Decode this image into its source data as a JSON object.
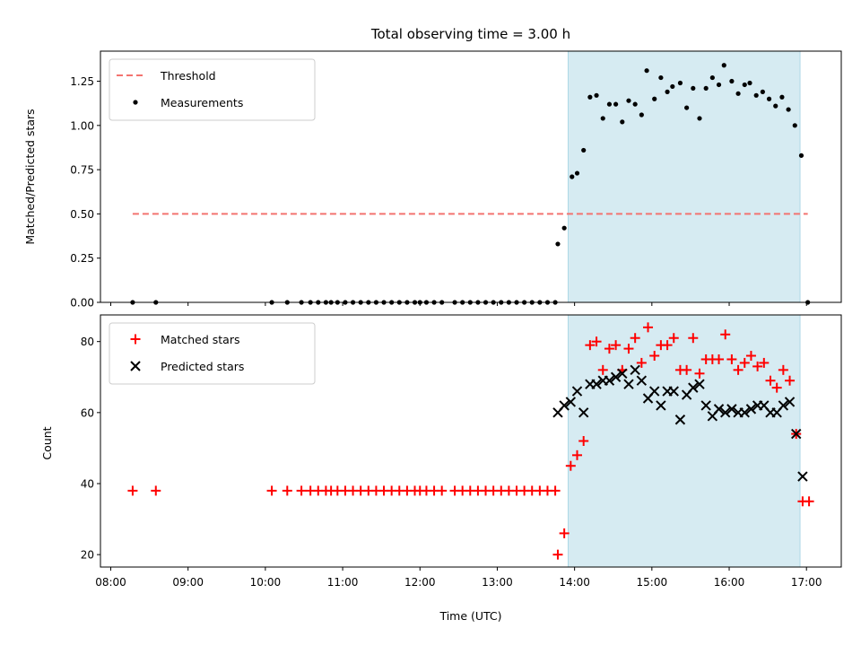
{
  "chart_data": {
    "title": "Total observing time = 3.00 h",
    "xlabel": "Time (UTC)",
    "x_ticks": [
      "08:00",
      "09:00",
      "10:00",
      "11:00",
      "12:00",
      "13:00",
      "14:00",
      "15:00",
      "16:00",
      "17:00"
    ],
    "xlim": [
      "07:52",
      "17:27"
    ],
    "shaded_span": {
      "start": "13:55",
      "end": "16:55",
      "color": "#add8e6"
    },
    "panels": [
      {
        "type": "scatter",
        "ylabel": "Matched/Predicted stars",
        "ylim": [
          0,
          1.42
        ],
        "y_ticks": [
          "0.00",
          "0.25",
          "0.50",
          "0.75",
          "1.00",
          "1.25"
        ],
        "legend": {
          "placement": "top-left",
          "entries": [
            "Threshold",
            "Measurements"
          ]
        },
        "threshold": {
          "name": "Threshold",
          "value": 0.5,
          "x_range": [
            "08:17",
            "17:01"
          ],
          "color": "#f37370",
          "style": "dashed"
        },
        "series": [
          {
            "name": "Measurements",
            "marker": "dot",
            "color": "#000000",
            "points": [
              [
                "08:17",
                0
              ],
              [
                "08:35",
                0
              ],
              [
                "10:05",
                0
              ],
              [
                "10:17",
                0
              ],
              [
                "10:28",
                0
              ],
              [
                "10:35",
                0
              ],
              [
                "10:41",
                0
              ],
              [
                "10:47",
                0
              ],
              [
                "10:51",
                0
              ],
              [
                "10:56",
                0
              ],
              [
                "11:02",
                0
              ],
              [
                "11:08",
                0
              ],
              [
                "11:14",
                0
              ],
              [
                "11:20",
                0
              ],
              [
                "11:26",
                0
              ],
              [
                "11:32",
                0
              ],
              [
                "11:38",
                0
              ],
              [
                "11:44",
                0
              ],
              [
                "11:50",
                0
              ],
              [
                "11:56",
                0
              ],
              [
                "12:00",
                0
              ],
              [
                "12:05",
                0
              ],
              [
                "12:11",
                0
              ],
              [
                "12:17",
                0
              ],
              [
                "12:27",
                0
              ],
              [
                "12:33",
                0
              ],
              [
                "12:39",
                0
              ],
              [
                "12:45",
                0
              ],
              [
                "12:51",
                0
              ],
              [
                "12:57",
                0
              ],
              [
                "13:03",
                0
              ],
              [
                "13:09",
                0
              ],
              [
                "13:15",
                0
              ],
              [
                "13:21",
                0
              ],
              [
                "13:27",
                0
              ],
              [
                "13:33",
                0
              ],
              [
                "13:39",
                0
              ],
              [
                "13:45",
                0
              ],
              [
                "13:47",
                0.33
              ],
              [
                "13:52",
                0.42
              ],
              [
                "13:58",
                0.71
              ],
              [
                "14:02",
                0.73
              ],
              [
                "14:07",
                0.86
              ],
              [
                "14:12",
                1.16
              ],
              [
                "14:17",
                1.17
              ],
              [
                "14:22",
                1.04
              ],
              [
                "14:27",
                1.12
              ],
              [
                "14:32",
                1.12
              ],
              [
                "14:37",
                1.02
              ],
              [
                "14:42",
                1.14
              ],
              [
                "14:47",
                1.12
              ],
              [
                "14:52",
                1.06
              ],
              [
                "14:56",
                1.31
              ],
              [
                "15:02",
                1.15
              ],
              [
                "15:07",
                1.27
              ],
              [
                "15:12",
                1.19
              ],
              [
                "15:16",
                1.22
              ],
              [
                "15:22",
                1.24
              ],
              [
                "15:27",
                1.1
              ],
              [
                "15:32",
                1.21
              ],
              [
                "15:37",
                1.04
              ],
              [
                "15:42",
                1.21
              ],
              [
                "15:47",
                1.27
              ],
              [
                "15:52",
                1.23
              ],
              [
                "15:56",
                1.34
              ],
              [
                "16:02",
                1.25
              ],
              [
                "16:07",
                1.18
              ],
              [
                "16:12",
                1.23
              ],
              [
                "16:16",
                1.24
              ],
              [
                "16:21",
                1.17
              ],
              [
                "16:26",
                1.19
              ],
              [
                "16:31",
                1.15
              ],
              [
                "16:36",
                1.11
              ],
              [
                "16:41",
                1.16
              ],
              [
                "16:46",
                1.09
              ],
              [
                "16:51",
                1.0
              ],
              [
                "16:56",
                0.83
              ],
              [
                "17:01",
                0
              ]
            ]
          }
        ]
      },
      {
        "type": "scatter",
        "ylabel": "Count",
        "ylim": [
          16.5,
          87.5
        ],
        "y_ticks": [
          "20",
          "40",
          "60",
          "80"
        ],
        "legend": {
          "placement": "top-left",
          "entries": [
            "Matched stars",
            "Predicted stars"
          ]
        },
        "series": [
          {
            "name": "Matched stars",
            "marker": "plus",
            "color": "#ff0000",
            "points": [
              [
                "08:17",
                38
              ],
              [
                "08:35",
                38
              ],
              [
                "10:05",
                38
              ],
              [
                "10:17",
                38
              ],
              [
                "10:28",
                38
              ],
              [
                "10:35",
                38
              ],
              [
                "10:41",
                38
              ],
              [
                "10:47",
                38
              ],
              [
                "10:51",
                38
              ],
              [
                "10:56",
                38
              ],
              [
                "11:02",
                38
              ],
              [
                "11:08",
                38
              ],
              [
                "11:14",
                38
              ],
              [
                "11:20",
                38
              ],
              [
                "11:26",
                38
              ],
              [
                "11:32",
                38
              ],
              [
                "11:38",
                38
              ],
              [
                "11:44",
                38
              ],
              [
                "11:50",
                38
              ],
              [
                "11:56",
                38
              ],
              [
                "12:00",
                38
              ],
              [
                "12:05",
                38
              ],
              [
                "12:11",
                38
              ],
              [
                "12:17",
                38
              ],
              [
                "12:27",
                38
              ],
              [
                "12:33",
                38
              ],
              [
                "12:39",
                38
              ],
              [
                "12:45",
                38
              ],
              [
                "12:51",
                38
              ],
              [
                "12:57",
                38
              ],
              [
                "13:03",
                38
              ],
              [
                "13:09",
                38
              ],
              [
                "13:15",
                38
              ],
              [
                "13:21",
                38
              ],
              [
                "13:27",
                38
              ],
              [
                "13:33",
                38
              ],
              [
                "13:39",
                38
              ],
              [
                "13:45",
                38
              ],
              [
                "13:47",
                20
              ],
              [
                "13:52",
                26
              ],
              [
                "13:57",
                45
              ],
              [
                "14:02",
                48
              ],
              [
                "14:07",
                52
              ],
              [
                "14:12",
                79
              ],
              [
                "14:17",
                80
              ],
              [
                "14:22",
                72
              ],
              [
                "14:27",
                78
              ],
              [
                "14:32",
                79
              ],
              [
                "14:37",
                72
              ],
              [
                "14:42",
                78
              ],
              [
                "14:47",
                81
              ],
              [
                "14:52",
                74
              ],
              [
                "14:57",
                84
              ],
              [
                "15:02",
                76
              ],
              [
                "15:07",
                79
              ],
              [
                "15:12",
                79
              ],
              [
                "15:17",
                81
              ],
              [
                "15:22",
                72
              ],
              [
                "15:27",
                72
              ],
              [
                "15:32",
                81
              ],
              [
                "15:37",
                71
              ],
              [
                "15:42",
                75
              ],
              [
                "15:47",
                75
              ],
              [
                "15:52",
                75
              ],
              [
                "15:57",
                82
              ],
              [
                "16:02",
                75
              ],
              [
                "16:07",
                72
              ],
              [
                "16:12",
                74
              ],
              [
                "16:17",
                76
              ],
              [
                "16:22",
                73
              ],
              [
                "16:27",
                74
              ],
              [
                "16:32",
                69
              ],
              [
                "16:37",
                67
              ],
              [
                "16:42",
                72
              ],
              [
                "16:47",
                69
              ],
              [
                "16:52",
                54
              ],
              [
                "16:57",
                35
              ],
              [
                "17:02",
                35
              ]
            ]
          },
          {
            "name": "Predicted stars",
            "marker": "x",
            "color": "#000000",
            "points": [
              [
                "13:47",
                60
              ],
              [
                "13:52",
                62
              ],
              [
                "13:57",
                63
              ],
              [
                "14:02",
                66
              ],
              [
                "14:07",
                60
              ],
              [
                "14:12",
                68
              ],
              [
                "14:17",
                68
              ],
              [
                "14:22",
                69
              ],
              [
                "14:27",
                69
              ],
              [
                "14:32",
                70
              ],
              [
                "14:37",
                71
              ],
              [
                "14:42",
                68
              ],
              [
                "14:47",
                72
              ],
              [
                "14:52",
                69
              ],
              [
                "14:57",
                64
              ],
              [
                "15:02",
                66
              ],
              [
                "15:07",
                62
              ],
              [
                "15:12",
                66
              ],
              [
                "15:17",
                66
              ],
              [
                "15:22",
                58
              ],
              [
                "15:27",
                65
              ],
              [
                "15:32",
                67
              ],
              [
                "15:37",
                68
              ],
              [
                "15:42",
                62
              ],
              [
                "15:47",
                59
              ],
              [
                "15:52",
                61
              ],
              [
                "15:57",
                60
              ],
              [
                "16:02",
                61
              ],
              [
                "16:07",
                60
              ],
              [
                "16:12",
                60
              ],
              [
                "16:17",
                61
              ],
              [
                "16:22",
                62
              ],
              [
                "16:27",
                62
              ],
              [
                "16:32",
                60
              ],
              [
                "16:37",
                60
              ],
              [
                "16:42",
                62
              ],
              [
                "16:47",
                63
              ],
              [
                "16:52",
                54
              ],
              [
                "16:57",
                42
              ]
            ]
          }
        ]
      }
    ]
  }
}
